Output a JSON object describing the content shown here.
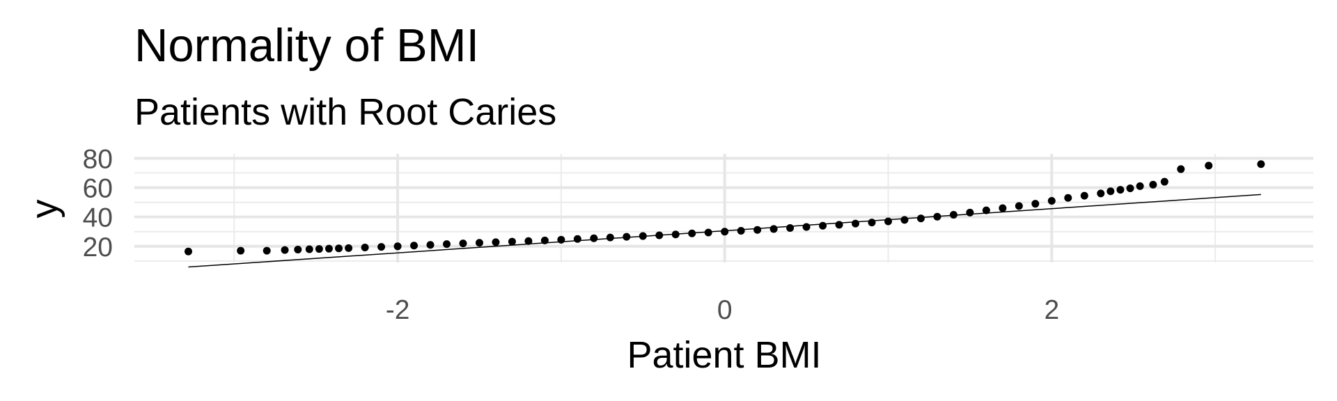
{
  "chart_data": {
    "type": "scatter",
    "title": "Normality of BMI",
    "subtitle": "Patients with Root Caries",
    "x_label": "Patient BMI",
    "y_label": "y",
    "xlim": [
      -3.61,
      3.6
    ],
    "ylim": [
      9,
      83
    ],
    "xticks": [
      -2,
      0,
      2
    ],
    "yticks": [
      20,
      40,
      60,
      80
    ],
    "x_minor_grid": [
      -3,
      -1,
      1,
      3
    ],
    "y_minor_grid": [
      10,
      30,
      50,
      70
    ],
    "grid": true,
    "series": [
      {
        "color": "#000000",
        "x": [
          -3.28,
          -2.96,
          -2.8,
          -2.69,
          -2.61,
          -2.54,
          -2.48,
          -2.42,
          -2.36,
          -2.3,
          -2.2,
          -2.1,
          -2.0,
          -1.9,
          -1.8,
          -1.7,
          -1.6,
          -1.5,
          -1.4,
          -1.3,
          -1.2,
          -1.1,
          -1.0,
          -0.9,
          -0.8,
          -0.7,
          -0.6,
          -0.5,
          -0.4,
          -0.3,
          -0.2,
          -0.1,
          0,
          0.1,
          0.2,
          0.3,
          0.4,
          0.5,
          0.6,
          0.7,
          0.8,
          0.9,
          1.0,
          1.1,
          1.2,
          1.3,
          1.4,
          1.5,
          1.6,
          1.7,
          1.8,
          1.9,
          2.0,
          2.1,
          2.2,
          2.3,
          2.36,
          2.42,
          2.48,
          2.54,
          2.62,
          2.69,
          2.79,
          2.96,
          3.28
        ],
        "values": [
          16.5,
          17,
          17,
          17.5,
          17.8,
          18,
          18.2,
          18.4,
          18.6,
          18.8,
          19.2,
          19.6,
          20,
          20.5,
          21,
          21.5,
          22,
          22.4,
          22.8,
          23.2,
          23.6,
          24,
          24.5,
          25,
          25.5,
          26,
          26.5,
          27,
          27.5,
          28.1,
          28.8,
          29.4,
          30,
          30.6,
          31.2,
          31.8,
          32.5,
          33.2,
          34,
          34.7,
          35.5,
          36.2,
          37,
          38,
          39,
          40.2,
          41.5,
          43,
          44.5,
          46,
          47.5,
          49,
          51,
          53,
          54.5,
          56,
          57.5,
          58.5,
          59.5,
          61,
          62,
          64,
          72.6,
          75,
          76
        ]
      }
    ],
    "reference_line": {
      "color": "#000000",
      "x": [
        -3.28,
        3.28
      ],
      "values": [
        5.9,
        55.3
      ]
    }
  }
}
